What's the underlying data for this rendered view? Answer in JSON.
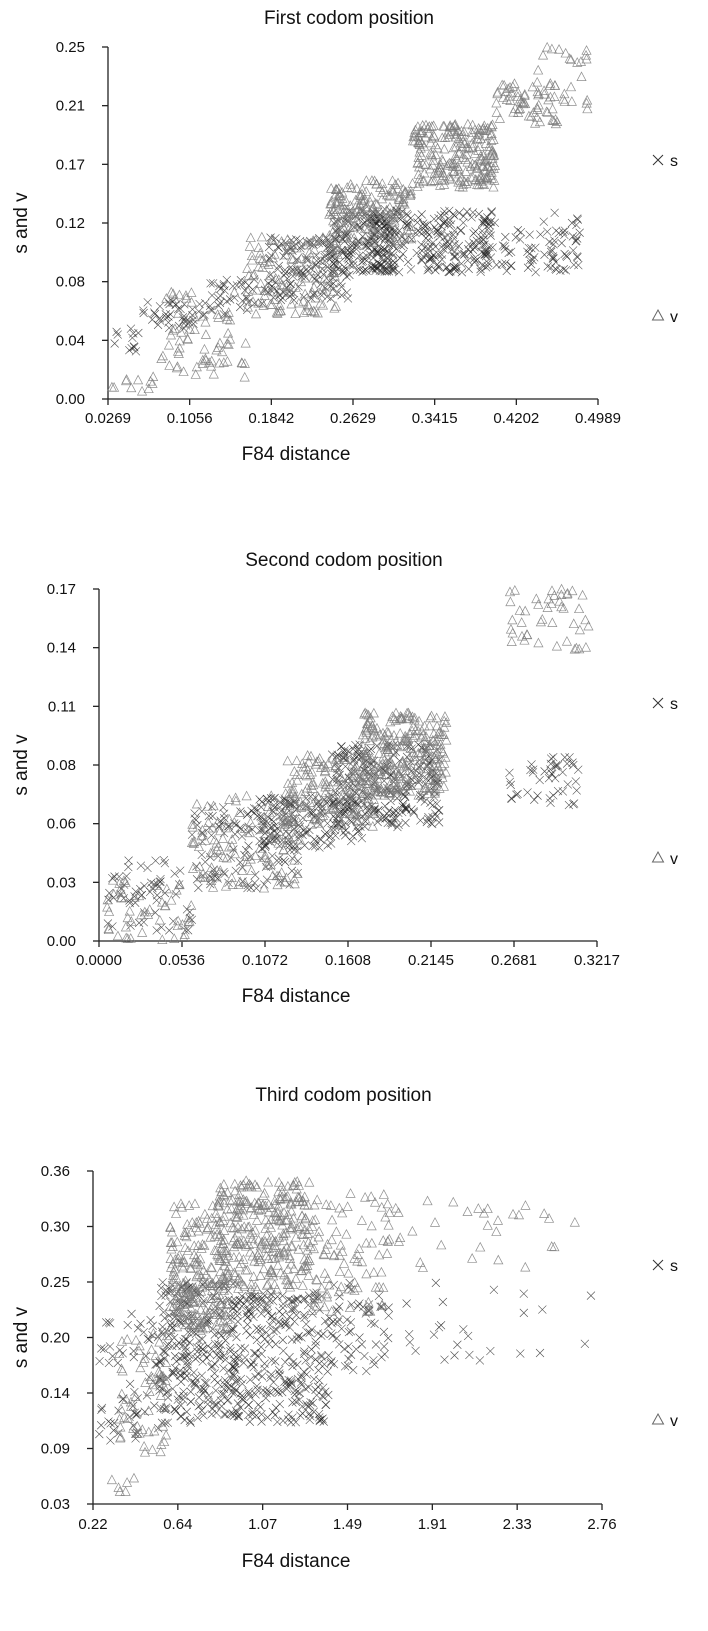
{
  "chart_data": [
    {
      "type": "scatter",
      "title": "First codom position",
      "xlabel": "F84 distance",
      "ylabel": "s and v",
      "xlim": [
        0.0269,
        0.4989
      ],
      "ylim": [
        0.0,
        0.25
      ],
      "x_ticks": [
        "0.0269",
        "0.1056",
        "0.1842",
        "0.2629",
        "0.3415",
        "0.4202",
        "0.4989"
      ],
      "y_ticks": [
        "0.00",
        "0.04",
        "0.08",
        "0.12",
        "0.17",
        "0.21",
        "0.25"
      ],
      "legend": [
        "s",
        "v"
      ],
      "legend_placement": "right",
      "grid": false,
      "series": [
        {
          "name": "s",
          "marker": "x",
          "clusters": [
            {
              "x": [
                0.03,
                0.06
              ],
              "y": [
                0.03,
                0.05
              ],
              "n": 12
            },
            {
              "x": [
                0.06,
                0.12
              ],
              "y": [
                0.05,
                0.07
              ],
              "n": 40
            },
            {
              "x": [
                0.12,
                0.18
              ],
              "y": [
                0.06,
                0.085
              ],
              "n": 40
            },
            {
              "x": [
                0.18,
                0.26
              ],
              "y": [
                0.07,
                0.115
              ],
              "n": 140
            },
            {
              "x": [
                0.24,
                0.3
              ],
              "y": [
                0.09,
                0.135
              ],
              "n": 140
            },
            {
              "x": [
                0.28,
                0.4
              ],
              "y": [
                0.09,
                0.135
              ],
              "n": 260
            },
            {
              "x": [
                0.4,
                0.48
              ],
              "y": [
                0.09,
                0.12
              ],
              "n": 60
            },
            {
              "x": [
                0.44,
                0.49
              ],
              "y": [
                0.105,
                0.135
              ],
              "n": 12
            }
          ]
        },
        {
          "name": "v",
          "marker": "triangle",
          "clusters": [
            {
              "x": [
                0.03,
                0.07
              ],
              "y": [
                0.005,
                0.015
              ],
              "n": 10
            },
            {
              "x": [
                0.07,
                0.16
              ],
              "y": [
                0.015,
                0.045
              ],
              "n": 40
            },
            {
              "x": [
                0.08,
                0.15
              ],
              "y": [
                0.045,
                0.08
              ],
              "n": 30
            },
            {
              "x": [
                0.16,
                0.25
              ],
              "y": [
                0.06,
                0.115
              ],
              "n": 120
            },
            {
              "x": [
                0.24,
                0.32
              ],
              "y": [
                0.11,
                0.155
              ],
              "n": 160
            },
            {
              "x": [
                0.32,
                0.4
              ],
              "y": [
                0.15,
                0.195
              ],
              "n": 230
            },
            {
              "x": [
                0.4,
                0.46
              ],
              "y": [
                0.195,
                0.225
              ],
              "n": 60
            },
            {
              "x": [
                0.44,
                0.49
              ],
              "y": [
                0.205,
                0.25
              ],
              "n": 25
            }
          ]
        }
      ]
    },
    {
      "type": "scatter",
      "title": "Second codom position",
      "xlabel": "F84 distance",
      "ylabel": "s and v",
      "xlim": [
        0.0,
        0.3217
      ],
      "ylim": [
        0.0,
        0.17
      ],
      "x_ticks": [
        "0.0000",
        "0.0536",
        "0.1072",
        "0.1608",
        "0.2145",
        "0.2681",
        "0.3217"
      ],
      "y_ticks": [
        "0.00",
        "0.03",
        "0.06",
        "0.08",
        "0.11",
        "0.14",
        "0.17"
      ],
      "legend": [
        "s",
        "v"
      ],
      "legend_placement": "right",
      "grid": false,
      "series": [
        {
          "name": "s",
          "marker": "x",
          "clusters": [
            {
              "x": [
                0.005,
                0.06
              ],
              "y": [
                0.005,
                0.04
              ],
              "n": 60
            },
            {
              "x": [
                0.06,
                0.13
              ],
              "y": [
                0.025,
                0.065
              ],
              "n": 110
            },
            {
              "x": [
                0.1,
                0.17
              ],
              "y": [
                0.045,
                0.07
              ],
              "n": 150
            },
            {
              "x": [
                0.15,
                0.22
              ],
              "y": [
                0.055,
                0.095
              ],
              "n": 260
            },
            {
              "x": [
                0.265,
                0.31
              ],
              "y": [
                0.065,
                0.09
              ],
              "n": 45
            }
          ]
        },
        {
          "name": "v",
          "marker": "triangle",
          "clusters": [
            {
              "x": [
                0.005,
                0.06
              ],
              "y": [
                0.0,
                0.03
              ],
              "n": 50
            },
            {
              "x": [
                0.06,
                0.13
              ],
              "y": [
                0.025,
                0.07
              ],
              "n": 110
            },
            {
              "x": [
                0.12,
                0.18
              ],
              "y": [
                0.055,
                0.09
              ],
              "n": 150
            },
            {
              "x": [
                0.17,
                0.225
              ],
              "y": [
                0.07,
                0.11
              ],
              "n": 240
            },
            {
              "x": [
                0.265,
                0.32
              ],
              "y": [
                0.14,
                0.17
              ],
              "n": 45
            }
          ]
        }
      ]
    },
    {
      "type": "scatter",
      "title": "Third codom position",
      "xlabel": "F84 distance",
      "ylabel": "s and v",
      "xlim": [
        0.22,
        2.76
      ],
      "ylim": [
        0.03,
        0.36
      ],
      "x_ticks": [
        "0.22",
        "0.64",
        "1.07",
        "1.49",
        "1.91",
        "2.33",
        "2.76"
      ],
      "y_ticks": [
        "0.03",
        "0.09",
        "0.14",
        "0.20",
        "0.25",
        "0.30",
        "0.36"
      ],
      "legend": [
        "s",
        "v"
      ],
      "legend_placement": "right",
      "grid": false,
      "series": [
        {
          "name": "s",
          "marker": "x",
          "clusters": [
            {
              "x": [
                0.25,
                0.55
              ],
              "y": [
                0.09,
                0.22
              ],
              "n": 60
            },
            {
              "x": [
                0.55,
                0.95
              ],
              "y": [
                0.11,
                0.25
              ],
              "n": 300
            },
            {
              "x": [
                0.95,
                1.4
              ],
              "y": [
                0.11,
                0.24
              ],
              "n": 260
            },
            {
              "x": [
                1.4,
                1.7
              ],
              "y": [
                0.16,
                0.25
              ],
              "n": 60
            },
            {
              "x": [
                1.7,
                2.76
              ],
              "y": [
                0.17,
                0.25
              ],
              "n": 25
            }
          ]
        },
        {
          "name": "v",
          "marker": "triangle",
          "clusters": [
            {
              "x": [
                0.27,
                0.45
              ],
              "y": [
                0.04,
                0.06
              ],
              "n": 6
            },
            {
              "x": [
                0.35,
                0.6
              ],
              "y": [
                0.08,
                0.2
              ],
              "n": 60
            },
            {
              "x": [
                0.6,
                0.9
              ],
              "y": [
                0.2,
                0.33
              ],
              "n": 220
            },
            {
              "x": [
                0.85,
                1.3
              ],
              "y": [
                0.24,
                0.35
              ],
              "n": 280
            },
            {
              "x": [
                1.3,
                1.7
              ],
              "y": [
                0.22,
                0.34
              ],
              "n": 90
            },
            {
              "x": [
                1.7,
                2.76
              ],
              "y": [
                0.26,
                0.33
              ],
              "n": 30
            }
          ]
        }
      ]
    }
  ]
}
